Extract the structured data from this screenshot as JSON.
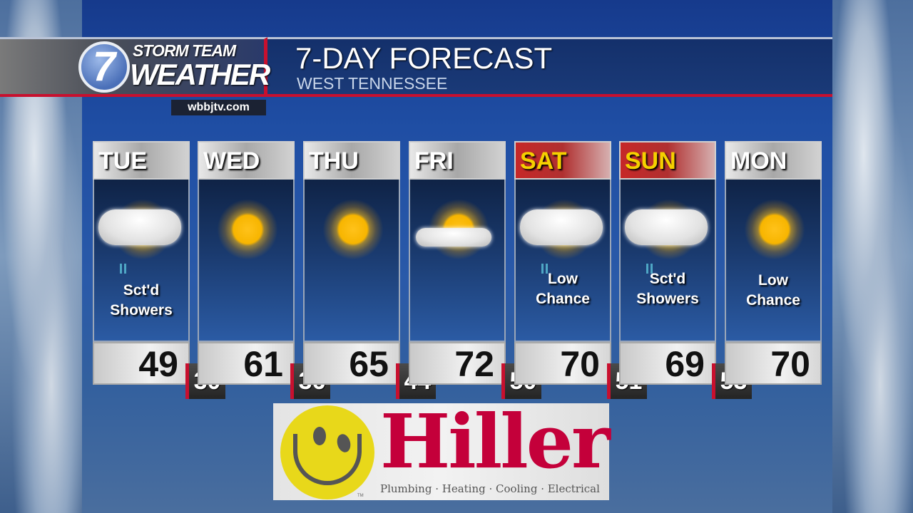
{
  "header": {
    "brand_line1": "STORM TEAM",
    "brand_line2": "WEATHER",
    "logo_number": "7",
    "website": "wbbjtv.com",
    "title": "7-DAY FORECAST",
    "subtitle": "WEST TENNESSEE"
  },
  "colors": {
    "accent_red": "#c8102e",
    "weekend_day_text": "#f5d000",
    "hiller_red": "#c4003a",
    "smiley_yellow": "#e8d81a"
  },
  "days": [
    {
      "day": "TUE",
      "icon": "partly-sunny-showers-icon",
      "condition_line1": "Sct'd",
      "condition_line2": "Showers",
      "high": "49",
      "low": "30",
      "weekend": false
    },
    {
      "day": "WED",
      "icon": "sunny-icon",
      "condition_line1": "",
      "condition_line2": "",
      "high": "61",
      "low": "36",
      "weekend": false
    },
    {
      "day": "THU",
      "icon": "sunny-icon",
      "condition_line1": "",
      "condition_line2": "",
      "high": "65",
      "low": "44",
      "weekend": false
    },
    {
      "day": "FRI",
      "icon": "mostly-sunny-icon",
      "condition_line1": "",
      "condition_line2": "",
      "high": "72",
      "low": "50",
      "weekend": false
    },
    {
      "day": "SAT",
      "icon": "partly-sunny-showers-icon",
      "condition_line1": "Low",
      "condition_line2": "Chance",
      "high": "70",
      "low": "51",
      "weekend": true
    },
    {
      "day": "SUN",
      "icon": "partly-sunny-showers-icon",
      "condition_line1": "Sct'd",
      "condition_line2": "Showers",
      "high": "69",
      "low": "53",
      "weekend": true
    },
    {
      "day": "MON",
      "icon": "sunny-icon",
      "condition_line1": "Low",
      "condition_line2": "Chance",
      "high": "70",
      "low": "",
      "weekend": false
    }
  ],
  "sponsor": {
    "name": "Hiller",
    "tagline": "Plumbing · Heating · Cooling · Electrical",
    "trademark": "TM"
  }
}
